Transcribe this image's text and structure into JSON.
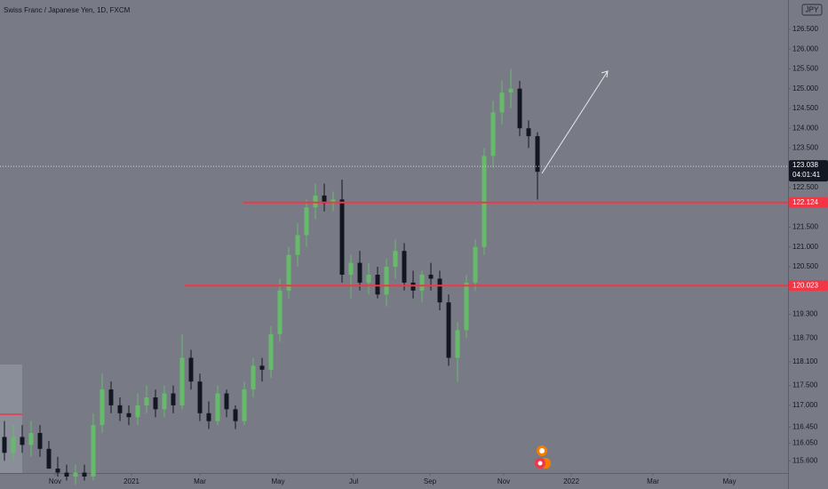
{
  "chart_data": {
    "type": "candlestick",
    "title": "Swiss Franc / Japanese Yen, 1D, FXCM",
    "currency": "JPY",
    "categories": [
      null,
      null,
      null,
      null,
      null,
      null,
      null,
      null,
      null,
      null,
      null,
      null,
      null,
      null,
      null,
      null,
      null,
      null,
      null,
      null,
      null,
      null,
      null,
      null,
      null,
      null,
      null,
      null,
      null,
      null,
      null,
      null,
      null,
      null,
      null,
      null,
      null,
      null,
      null,
      null,
      null,
      null,
      null,
      null,
      null,
      null,
      null,
      null,
      null,
      null,
      null,
      null,
      null,
      null,
      null,
      null,
      null,
      null,
      null,
      null,
      null
    ],
    "open": [
      116.2,
      115.8,
      116.2,
      116.0,
      116.3,
      115.9,
      115.4,
      115.3,
      115.2,
      115.3,
      115.2,
      116.5,
      117.4,
      117.0,
      116.8,
      116.7,
      117.0,
      117.2,
      116.9,
      117.3,
      117.0,
      118.2,
      117.6,
      116.8,
      116.6,
      117.3,
      116.9,
      116.6,
      117.4,
      118.0,
      117.9,
      118.8,
      119.9,
      120.8,
      121.3,
      122.0,
      122.3,
      122.1,
      122.2,
      120.3,
      120.6,
      120.1,
      120.3,
      119.8,
      120.5,
      120.9,
      120.1,
      119.9,
      120.3,
      120.2,
      119.6,
      118.2,
      118.9,
      120.1,
      121.0,
      123.3,
      124.4,
      124.9,
      125.0,
      124.0,
      123.8
    ],
    "high": [
      116.6,
      116.5,
      116.5,
      116.6,
      116.5,
      116.1,
      115.7,
      115.5,
      115.5,
      115.5,
      116.8,
      117.8,
      117.6,
      117.2,
      117.0,
      117.3,
      117.5,
      117.4,
      117.5,
      117.5,
      118.8,
      118.4,
      117.8,
      117.1,
      117.5,
      117.4,
      117.0,
      117.6,
      118.2,
      118.2,
      119.0,
      120.2,
      121.0,
      121.6,
      122.2,
      122.6,
      122.6,
      122.4,
      122.7,
      120.8,
      120.9,
      120.6,
      120.5,
      120.7,
      121.2,
      121.1,
      120.4,
      120.4,
      120.6,
      120.4,
      119.8,
      119.1,
      120.3,
      121.2,
      123.5,
      124.7,
      125.2,
      125.5,
      125.2,
      124.2,
      123.9
    ],
    "low": [
      115.6,
      115.6,
      115.8,
      115.7,
      115.7,
      115.4,
      115.2,
      115.1,
      115.0,
      115.1,
      115.1,
      116.3,
      116.8,
      116.6,
      116.5,
      116.5,
      116.8,
      116.7,
      116.7,
      116.8,
      116.9,
      117.4,
      116.6,
      116.4,
      116.5,
      116.7,
      116.4,
      116.5,
      117.2,
      117.6,
      117.7,
      118.6,
      119.7,
      120.5,
      121.0,
      121.7,
      121.9,
      121.9,
      120.1,
      119.7,
      119.9,
      119.8,
      119.7,
      119.5,
      120.2,
      119.9,
      119.7,
      119.6,
      119.9,
      119.4,
      118.0,
      117.6,
      118.7,
      119.9,
      120.8,
      123.0,
      124.1,
      124.5,
      123.8,
      123.5,
      122.2
    ],
    "close": [
      115.8,
      116.2,
      116.0,
      116.3,
      115.9,
      115.4,
      115.3,
      115.2,
      115.3,
      115.2,
      116.5,
      117.4,
      117.0,
      116.8,
      116.7,
      117.0,
      117.2,
      116.9,
      117.3,
      117.0,
      118.2,
      117.6,
      116.8,
      116.6,
      117.3,
      116.9,
      116.6,
      117.4,
      118.0,
      117.9,
      118.8,
      119.9,
      120.8,
      121.3,
      122.0,
      122.3,
      122.1,
      122.2,
      120.3,
      120.6,
      120.1,
      120.3,
      119.8,
      120.5,
      120.9,
      120.1,
      119.9,
      120.3,
      120.2,
      119.6,
      118.2,
      118.9,
      120.1,
      121.0,
      123.3,
      124.4,
      124.9,
      125.0,
      124.0,
      123.8,
      122.9
    ],
    "up_color": "#66bb6a",
    "down_color": "#131722",
    "xlim": [
      -0.5,
      88.2
    ],
    "xticks": [
      {
        "value": 5.7,
        "label": "Nov"
      },
      {
        "value": 14.3,
        "label": "2021"
      },
      {
        "value": 22.0,
        "label": "Mar"
      },
      {
        "value": 30.8,
        "label": "May"
      },
      {
        "value": 39.3,
        "label": "Jul"
      },
      {
        "value": 47.9,
        "label": "Sep"
      },
      {
        "value": 56.2,
        "label": "Nov"
      },
      {
        "value": 63.8,
        "label": "2022"
      },
      {
        "value": 73.0,
        "label": "Mar"
      },
      {
        "value": 81.6,
        "label": "May"
      }
    ],
    "ylim": [
      115.29,
      127.24
    ],
    "yticks": [
      {
        "value": 126.5,
        "label": "126.500"
      },
      {
        "value": 126,
        "label": "126.000"
      },
      {
        "value": 125.5,
        "label": "125.500"
      },
      {
        "value": 125,
        "label": "125.000"
      },
      {
        "value": 124.5,
        "label": "124.500"
      },
      {
        "value": 124,
        "label": "124.000"
      },
      {
        "value": 123.5,
        "label": "123.500"
      },
      {
        "value": 122.5,
        "label": "122.500"
      },
      {
        "value": 121.5,
        "label": "121.500"
      },
      {
        "value": 121,
        "label": "121.000"
      },
      {
        "value": 120.5,
        "label": "120.500"
      },
      {
        "value": 119.3,
        "label": "119.300"
      },
      {
        "value": 118.7,
        "label": "118.700"
      },
      {
        "value": 118.1,
        "label": "118.100"
      },
      {
        "value": 117.5,
        "label": "117.500"
      },
      {
        "value": 117,
        "label": "117.000"
      },
      {
        "value": 116.45,
        "label": "116.450"
      },
      {
        "value": 116.05,
        "label": "116.050"
      },
      {
        "value": 115.6,
        "label": "115.600"
      }
    ],
    "price_lines": [
      {
        "value": 122.124,
        "label": "122.124",
        "start": 26.9,
        "color": "#f23645"
      },
      {
        "value": 120.023,
        "label": "120.023",
        "start": 20.3,
        "color": "#f23645"
      }
    ],
    "current_price": {
      "value": 123.038,
      "label": "123.038",
      "countdown": "04:01:41"
    }
  }
}
